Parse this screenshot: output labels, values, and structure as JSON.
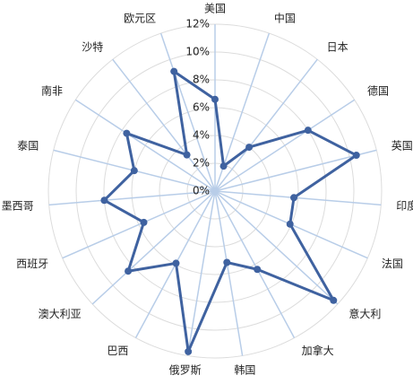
{
  "chart_data": {
    "type": "radar",
    "categories": [
      "美国",
      "中国",
      "日本",
      "德国",
      "英国",
      "印度",
      "法国",
      "意大利",
      "加拿大",
      "韩国",
      "俄罗斯",
      "巴西",
      "澳大利亚",
      "西班牙",
      "墨西哥",
      "泰国",
      "南非",
      "沙特",
      "欧元区"
    ],
    "series": [
      {
        "color": "#3f62a0",
        "values": [
          6.6,
          1.9,
          4.0,
          8.0,
          10.5,
          5.7,
          5.9,
          11.6,
          6.4,
          5.2,
          11.7,
          5.9,
          8.5,
          5.6,
          8.0,
          6.0,
          7.6,
          3.3,
          9.1
        ]
      }
    ],
    "ylim": [
      0,
      12
    ],
    "yticks": [
      {
        "value": 0,
        "label": "0%"
      },
      {
        "value": 2,
        "label": "2%"
      },
      {
        "value": 4,
        "label": "4%"
      },
      {
        "value": 6,
        "label": "6%"
      },
      {
        "value": 8,
        "label": "8%"
      },
      {
        "value": 10,
        "label": "10%"
      },
      {
        "value": 12,
        "label": "12%"
      }
    ],
    "grid": true
  }
}
